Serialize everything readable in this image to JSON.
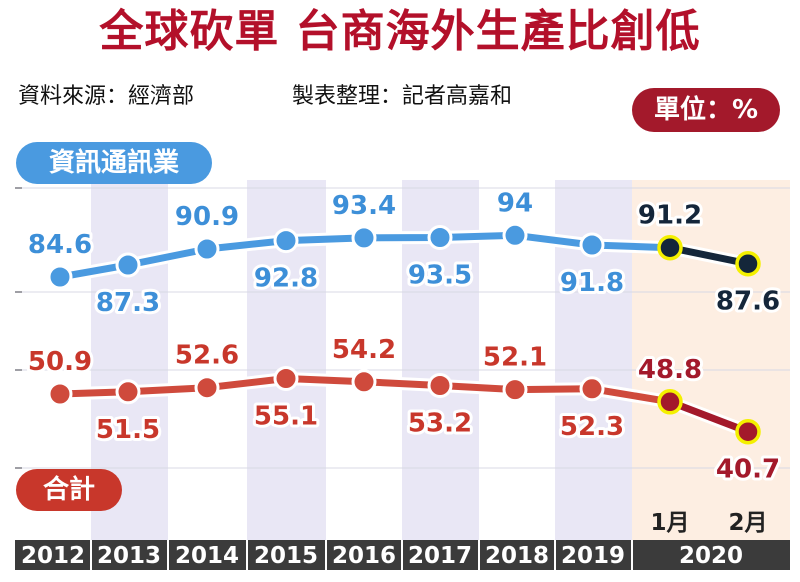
{
  "header": {
    "title": "全球砍單 台商海外生產比創低",
    "source": "資料來源：經濟部",
    "compiled": "製表整理：記者高嘉和",
    "unit": "單位：%"
  },
  "colors": {
    "title": "#b3102a",
    "info_series": "#4a9ae0",
    "info_label": "#3d8fd8",
    "total_series": "#cf4a3c",
    "total_label": "#c8372b",
    "highlight_line": "#14263a",
    "highlight_total": "#a3192b",
    "highlight_marker": "#f4f000",
    "band_light": "#ffffff",
    "band_shade": "#e9e7f5",
    "band_2020": "#fdeee2",
    "axis_bar": "#3b3b3b"
  },
  "chart_data": {
    "type": "line",
    "categories": [
      "2012",
      "2013",
      "2014",
      "2015",
      "2016",
      "2017",
      "2018",
      "2019",
      "1月",
      "2月"
    ],
    "year_axis": [
      "2012",
      "2013",
      "2014",
      "2015",
      "2016",
      "2017",
      "2018",
      "2019",
      "2020"
    ],
    "months_2020": [
      "1月",
      "2月"
    ],
    "series": [
      {
        "name": "資訊通訊業",
        "values": [
          84.6,
          87.3,
          90.9,
          92.8,
          93.4,
          93.5,
          94,
          91.8,
          91.2,
          87.6
        ]
      },
      {
        "name": "合計",
        "values": [
          50.9,
          51.5,
          52.6,
          55.1,
          54.2,
          53.2,
          52.1,
          52.3,
          48.8,
          40.7
        ]
      }
    ],
    "labels": [
      [
        "84.6",
        "87.3",
        "90.9",
        "92.8",
        "93.4",
        "93.5",
        "94",
        "91.8",
        "91.2",
        "87.6"
      ],
      [
        "50.9",
        "51.5",
        "52.6",
        "55.1",
        "54.2",
        "53.2",
        "52.1",
        "52.3",
        "48.8",
        "40.7"
      ]
    ],
    "highlighted_points": [
      8,
      9
    ],
    "gridlines": true,
    "legend": "series names as badges at left of each line"
  }
}
